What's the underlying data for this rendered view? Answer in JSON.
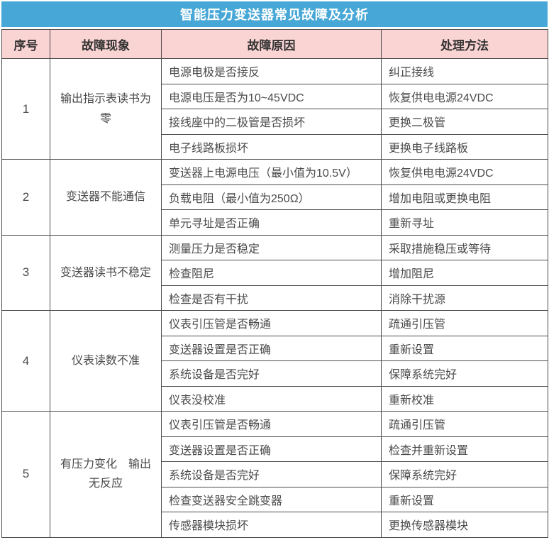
{
  "title": "智能压力变送器常见故障及分析",
  "colors": {
    "title_bg": "#47a7d6",
    "title_text": "#ffffff",
    "header_bg": "#fad3d3",
    "border": "#4c4c4c",
    "body_text": "#4a4a4a"
  },
  "header": {
    "serial": "序号",
    "phenomenon": "故障现象",
    "cause": "故障原因",
    "solution": "处理方法"
  },
  "groups": [
    {
      "serial": "1",
      "phenomenon": "输出指示表读书为零",
      "rows": [
        {
          "cause": "电源电极是否接反",
          "solution": "纠正接线"
        },
        {
          "cause": "电源电压是否为10~45VDC",
          "solution": "恢复供电电源24VDC"
        },
        {
          "cause": "接线座中的二极管是否损坏",
          "solution": "更换二极管"
        },
        {
          "cause": "电子线路板损坏",
          "solution": "更换电子线路板"
        }
      ]
    },
    {
      "serial": "2",
      "phenomenon": "变送器不能通信",
      "rows": [
        {
          "cause": "变送器上电源电压（最小值为10.5V）",
          "solution": "恢复供电电源24VDC"
        },
        {
          "cause": "负载电阻（最小值为250Ω）",
          "solution": "增加电阻或更换电阻"
        },
        {
          "cause": "单元寻址是否正确",
          "solution": "重新寻址"
        }
      ]
    },
    {
      "serial": "3",
      "phenomenon": "变送器读书不稳定",
      "rows": [
        {
          "cause": "测量压力是否稳定",
          "solution": "采取措施稳压或等待"
        },
        {
          "cause": "检查阻尼",
          "solution": "增加阻尼"
        },
        {
          "cause": "检查是否有干扰",
          "solution": "消除干扰源"
        }
      ]
    },
    {
      "serial": "4",
      "phenomenon": "仪表读数不准",
      "rows": [
        {
          "cause": "仪表引压管是否畅通",
          "solution": "疏通引压管"
        },
        {
          "cause": "变送器设置是否正确",
          "solution": "重新设置"
        },
        {
          "cause": "系统设备是否完好",
          "solution": "保障系统完好"
        },
        {
          "cause": "仪表没校准",
          "solution": "重新校准"
        }
      ]
    },
    {
      "serial": "5",
      "phenomenon": "有压力变化　输出无反应",
      "rows": [
        {
          "cause": "仪表引压管是否畅通",
          "solution": "疏通引压管"
        },
        {
          "cause": "变送器设置是否正确",
          "solution": "检查并重新设置"
        },
        {
          "cause": "系统设备是否完好",
          "solution": "保障系统完好"
        },
        {
          "cause": "检查变送器安全跳变器",
          "solution": "重新设置"
        },
        {
          "cause": "传感器模块损坏",
          "solution": "更换传感器模块"
        }
      ]
    }
  ]
}
